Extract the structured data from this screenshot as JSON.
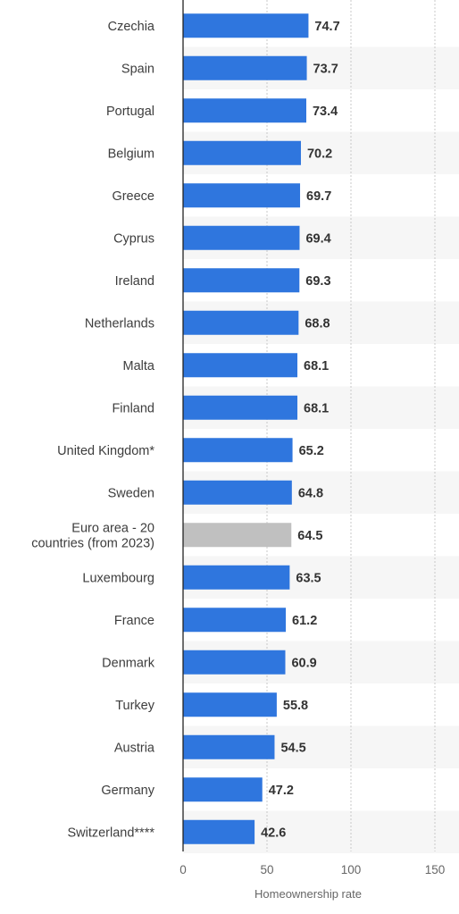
{
  "chart_data": {
    "type": "bar",
    "orientation": "horizontal",
    "title": "",
    "xlabel": "Homeownership rate",
    "ylabel": "",
    "xlim": [
      0,
      150
    ],
    "xticks": [
      "0",
      "50",
      "100",
      "150"
    ],
    "grid": "vertical dotted",
    "bar_color": "#2f76de",
    "highlight_color": "#c0c0c0",
    "categories": [
      {
        "label": [
          "Czechia"
        ],
        "value": 74.7,
        "display": "74.7",
        "highlight": false
      },
      {
        "label": [
          "Spain"
        ],
        "value": 73.7,
        "display": "73.7",
        "highlight": false
      },
      {
        "label": [
          "Portugal"
        ],
        "value": 73.4,
        "display": "73.4",
        "highlight": false
      },
      {
        "label": [
          "Belgium"
        ],
        "value": 70.2,
        "display": "70.2",
        "highlight": false
      },
      {
        "label": [
          "Greece"
        ],
        "value": 69.7,
        "display": "69.7",
        "highlight": false
      },
      {
        "label": [
          "Cyprus"
        ],
        "value": 69.4,
        "display": "69.4",
        "highlight": false
      },
      {
        "label": [
          "Ireland"
        ],
        "value": 69.3,
        "display": "69.3",
        "highlight": false
      },
      {
        "label": [
          "Netherlands"
        ],
        "value": 68.8,
        "display": "68.8",
        "highlight": false
      },
      {
        "label": [
          "Malta"
        ],
        "value": 68.1,
        "display": "68.1",
        "highlight": false
      },
      {
        "label": [
          "Finland"
        ],
        "value": 68.1,
        "display": "68.1",
        "highlight": false
      },
      {
        "label": [
          "United Kingdom*"
        ],
        "value": 65.2,
        "display": "65.2",
        "highlight": false
      },
      {
        "label": [
          "Sweden"
        ],
        "value": 64.8,
        "display": "64.8",
        "highlight": false
      },
      {
        "label": [
          "Euro area - 20",
          "countries (from 2023)"
        ],
        "value": 64.5,
        "display": "64.5",
        "highlight": true
      },
      {
        "label": [
          "Luxembourg"
        ],
        "value": 63.5,
        "display": "63.5",
        "highlight": false
      },
      {
        "label": [
          "France"
        ],
        "value": 61.2,
        "display": "61.2",
        "highlight": false
      },
      {
        "label": [
          "Denmark"
        ],
        "value": 60.9,
        "display": "60.9",
        "highlight": false
      },
      {
        "label": [
          "Turkey"
        ],
        "value": 55.8,
        "display": "55.8",
        "highlight": false
      },
      {
        "label": [
          "Austria"
        ],
        "value": 54.5,
        "display": "54.5",
        "highlight": false
      },
      {
        "label": [
          "Germany"
        ],
        "value": 47.2,
        "display": "47.2",
        "highlight": false
      },
      {
        "label": [
          "Switzerland****"
        ],
        "value": 42.6,
        "display": "42.6",
        "highlight": false
      }
    ]
  }
}
